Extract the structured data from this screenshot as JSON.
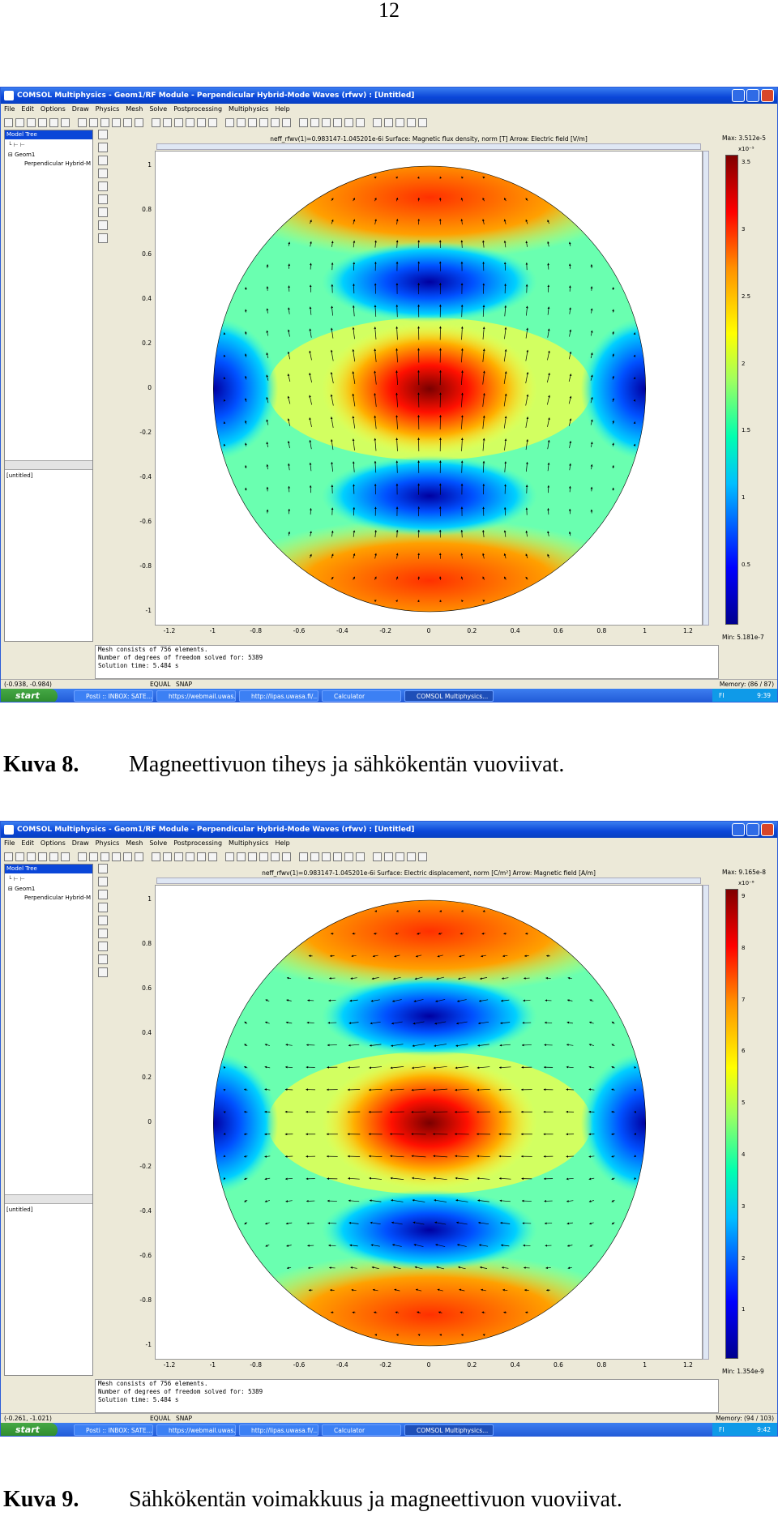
{
  "page_number": "12",
  "figures": [
    {
      "window_title": "COMSOL Multiphysics - Geom1/RF Module - Perpendicular Hybrid-Mode Waves (rfwv) : [Untitled]",
      "plot_title": "neff_rfwv(1)=0.983147-1.045201e-6i   Surface: Magnetic flux density, norm [T]   Arrow: Electric field [V/m]",
      "colorbar_max": "Max: 3.512e-5",
      "colorbar_exp": "x10⁻⁵",
      "colorbar_min": "Min: 5.181e-7",
      "colorbar_ticks": [
        "3.5",
        "3",
        "2.5",
        "2",
        "1.5",
        "1",
        "0.5"
      ],
      "status_coord": "(-0.938, -0.984)",
      "status_mem": "Memory: (86 / 87)",
      "clock": "9:39",
      "console": [
        "Mesh consists of 756 elements.",
        "Number of degrees of freedom solved for: 5389",
        "Solution time: 5.484 s"
      ],
      "caption_num": "Kuva 8.",
      "caption_text": "Magneettivuon tiheys ja sähkökentän vuoviivat."
    },
    {
      "window_title": "COMSOL Multiphysics - Geom1/RF Module - Perpendicular Hybrid-Mode Waves (rfwv) : [Untitled]",
      "plot_title": "neff_rfwv(1)=0.983147-1.045201e-6i   Surface: Electric displacement, norm [C/m²]   Arrow: Magnetic field [A/m]",
      "colorbar_max": "Max: 9.165e-8",
      "colorbar_exp": "x10⁻⁸",
      "colorbar_min": "Min: 1.354e-9",
      "colorbar_ticks": [
        "9",
        "8",
        "7",
        "6",
        "5",
        "4",
        "3",
        "2",
        "1"
      ],
      "status_coord": "(-0.261, -1.021)",
      "status_mem": "Memory: (94 / 103)",
      "clock": "9:42",
      "console": [
        "Mesh consists of 756 elements.",
        "Number of degrees of freedom solved for: 5389",
        "Solution time: 5.484 s"
      ],
      "caption_num": "Kuva 9.",
      "caption_text": "Sähkökentän voimakkuus ja magneettivuon vuoviivat."
    }
  ],
  "shared": {
    "menu": [
      "File",
      "Edit",
      "Options",
      "Draw",
      "Physics",
      "Mesh",
      "Solve",
      "Postprocessing",
      "Multiphysics",
      "Help"
    ],
    "model_tree_label": "Model Tree",
    "tree_geom": "Geom1",
    "tree_item": "Perpendicular Hybrid-M",
    "untitled": "[untitled]",
    "equal": "EQUAL",
    "snap": "SNAP",
    "start": "start",
    "tasks": [
      "Posti :: INBOX: SATE...",
      "https://webmail.uwas...",
      "http://lipas.uwasa.fi/...",
      "Calculator",
      "COMSOL Multiphysics..."
    ],
    "lang": "FI",
    "x_ticks": [
      "-1.2",
      "-1",
      "-0.8",
      "-0.6",
      "-0.4",
      "-0.2",
      "0",
      "0.2",
      "0.4",
      "0.6",
      "0.8",
      "1",
      "1.2"
    ],
    "y_ticks": [
      "1",
      "0.8",
      "0.6",
      "0.4",
      "0.2",
      "0",
      "-0.2",
      "-0.4",
      "-0.6",
      "-0.8",
      "-1"
    ]
  }
}
